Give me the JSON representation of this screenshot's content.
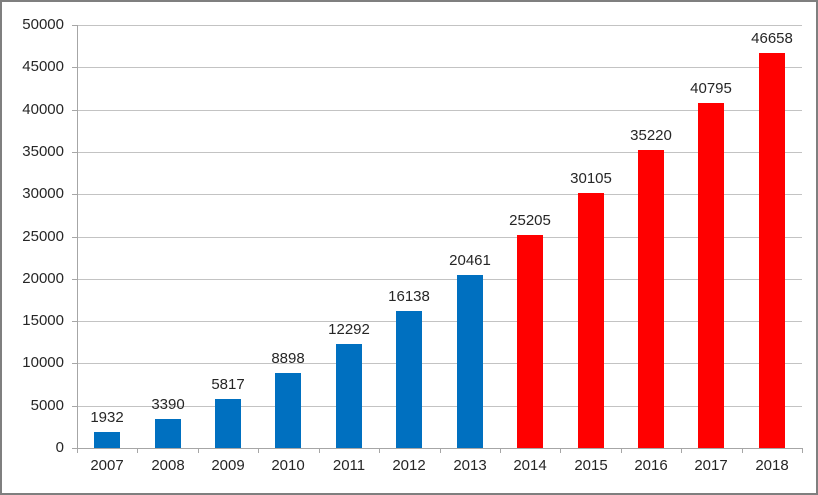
{
  "chart_data": {
    "type": "bar",
    "title": "",
    "xlabel": "",
    "ylabel": "",
    "categories": [
      "2007",
      "2008",
      "2009",
      "2010",
      "2011",
      "2012",
      "2013",
      "2014",
      "2015",
      "2016",
      "2017",
      "2018"
    ],
    "values": [
      1932,
      3390,
      5817,
      8898,
      12292,
      16138,
      20461,
      25205,
      30105,
      35220,
      40795,
      46658
    ],
    "bar_colors": [
      "#0070C0",
      "#0070C0",
      "#0070C0",
      "#0070C0",
      "#0070C0",
      "#0070C0",
      "#0070C0",
      "#FF0000",
      "#FF0000",
      "#FF0000",
      "#FF0000",
      "#FF0000"
    ],
    "data_labels_shown": true,
    "ylim": [
      0,
      50000
    ],
    "ytick_step": 5000,
    "ytick_labels": [
      "0",
      "5000",
      "10000",
      "15000",
      "20000",
      "25000",
      "30000",
      "35000",
      "40000",
      "45000",
      "50000"
    ],
    "grid": true,
    "legend_position": "none"
  },
  "colors": {
    "blue_series": "#0070C0",
    "red_series": "#FF0000",
    "gridline": "#C3C3C3",
    "axis_line": "#A6A6A6",
    "text": "#262626",
    "border": "#7F7F7F",
    "background": "#FFFFFF"
  }
}
